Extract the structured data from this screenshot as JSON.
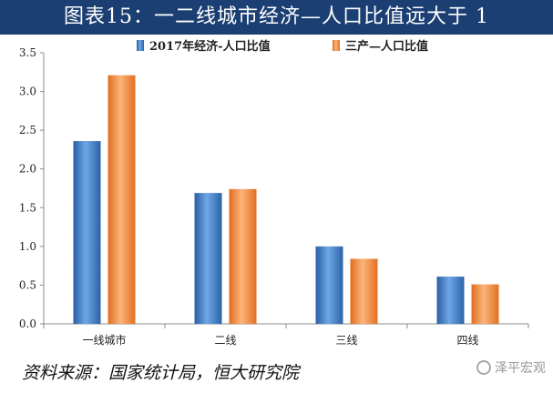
{
  "title": "图表15：一二线城市经济—人口比值远大于 1",
  "source": "资料来源：国家统计局，恒大研究院",
  "watermark": "泽平宏观",
  "colors": {
    "title_bg": "#1b3f73",
    "series1": "#3a78c2",
    "series2": "#f08a3c"
  },
  "chart_data": {
    "type": "bar",
    "categories": [
      "一线城市",
      "二线",
      "三线",
      "四线"
    ],
    "series": [
      {
        "name": "2017年经济-人口比值",
        "values": [
          2.36,
          1.69,
          1.0,
          0.61
        ]
      },
      {
        "name": "三产—人口比值",
        "values": [
          3.21,
          1.74,
          0.84,
          0.51
        ]
      }
    ],
    "ylim": [
      0,
      3.5
    ],
    "yticks": [
      "0.0",
      "0.5",
      "1.0",
      "1.5",
      "2.0",
      "2.5",
      "3.0",
      "3.5"
    ],
    "grid": false,
    "legend_position": "top"
  }
}
